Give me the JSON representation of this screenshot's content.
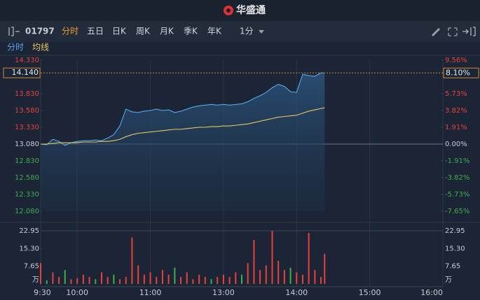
{
  "header": {
    "title": "华盛通"
  },
  "toolbar": {
    "code": "01797",
    "tabs": [
      "分时",
      "五日",
      "日K",
      "周K",
      "月K",
      "季K",
      "年K"
    ],
    "active_tab": 0,
    "interval": "1分"
  },
  "subtabs": [
    "分时",
    "均线"
  ],
  "chart_data": {
    "type": "line",
    "x": [
      0,
      5,
      10,
      15,
      20,
      25,
      30,
      35,
      40,
      45,
      50,
      55,
      60,
      65,
      70,
      75,
      80,
      85,
      90,
      95,
      100,
      105,
      110,
      115,
      120,
      125,
      130,
      135,
      140,
      145,
      150,
      155,
      160,
      165,
      170,
      175,
      180,
      185,
      190,
      195,
      200,
      205,
      210,
      215,
      220,
      225,
      230,
      233
    ],
    "xlim": [
      0,
      330
    ],
    "xticks": [
      {
        "value": 0,
        "label": "9:30"
      },
      {
        "value": 30,
        "label": "10:00"
      },
      {
        "value": 90,
        "label": "11:00"
      },
      {
        "value": 150,
        "label": "13:00"
      },
      {
        "value": 210,
        "label": "14:00"
      },
      {
        "value": 270,
        "label": "15:00"
      },
      {
        "value": 330,
        "label": "16:00"
      }
    ],
    "series": [
      {
        "name": "分时",
        "color": "#5aa8e8",
        "values": [
          13.08,
          13.07,
          13.15,
          13.12,
          13.06,
          13.1,
          13.12,
          13.13,
          13.13,
          13.14,
          13.13,
          13.17,
          13.22,
          13.35,
          13.6,
          13.56,
          13.55,
          13.57,
          13.58,
          13.6,
          13.58,
          13.59,
          13.55,
          13.57,
          13.6,
          13.63,
          13.65,
          13.66,
          13.67,
          13.66,
          13.67,
          13.66,
          13.67,
          13.68,
          13.71,
          13.76,
          13.8,
          13.85,
          13.92,
          13.97,
          13.94,
          13.86,
          13.85,
          14.12,
          14.1,
          14.09,
          14.14,
          14.14
        ]
      },
      {
        "name": "均线",
        "color": "#e8c860",
        "values": [
          13.08,
          13.08,
          13.09,
          13.1,
          13.1,
          13.1,
          13.1,
          13.11,
          13.11,
          13.11,
          13.12,
          13.12,
          13.13,
          13.15,
          13.19,
          13.22,
          13.24,
          13.25,
          13.26,
          13.27,
          13.28,
          13.29,
          13.3,
          13.3,
          13.31,
          13.32,
          13.33,
          13.33,
          13.34,
          13.34,
          13.35,
          13.35,
          13.36,
          13.37,
          13.38,
          13.4,
          13.42,
          13.44,
          13.46,
          13.48,
          13.49,
          13.5,
          13.51,
          13.54,
          13.57,
          13.59,
          13.61,
          13.62
        ]
      }
    ],
    "prev_close": 13.08,
    "ylim": [
      12.08,
      14.33
    ],
    "yticks": [
      {
        "value": 14.33,
        "label": "14.330"
      },
      {
        "value": 13.83,
        "label": "13.830"
      },
      {
        "value": 13.58,
        "label": "13.580"
      },
      {
        "value": 13.33,
        "label": "13.330"
      },
      {
        "value": 13.08,
        "label": "13.080"
      },
      {
        "value": 12.83,
        "label": "12.830"
      },
      {
        "value": 12.58,
        "label": "12.580"
      },
      {
        "value": 12.33,
        "label": "12.330"
      },
      {
        "value": 12.08,
        "label": "12.080"
      }
    ],
    "y2lim": [
      -7.65,
      9.56
    ],
    "y2ticks": [
      {
        "value": 9.56,
        "label": "9.56%"
      },
      {
        "value": 5.73,
        "label": "5.73%"
      },
      {
        "value": 3.82,
        "label": "3.82%"
      },
      {
        "value": 1.91,
        "label": "1.91%"
      },
      {
        "value": 0,
        "label": "0.00%"
      },
      {
        "value": -1.91,
        "label": "-1.91%"
      },
      {
        "value": -3.82,
        "label": "-3.82%"
      },
      {
        "value": -5.73,
        "label": "-5.73%"
      },
      {
        "value": -7.65,
        "label": "-7.65%"
      }
    ],
    "last_price": {
      "value": 14.14,
      "label": "14.140"
    },
    "last_change": {
      "value": 8.1,
      "label": "8.10%"
    },
    "up_color": "#e8413c",
    "down_color": "#3cb04c",
    "volume": {
      "unit": "万",
      "ylim": [
        0,
        22.95
      ],
      "yticks": [
        22.95,
        {
          "value": 15.3,
          "label": "15.30"
        },
        7.65
      ],
      "values": [
        9,
        1.5,
        5,
        3,
        6,
        2,
        2.5,
        4,
        3,
        2,
        5,
        3,
        4,
        2,
        3,
        20,
        8,
        4,
        5,
        3,
        6,
        4,
        7,
        3,
        5,
        2,
        4,
        3,
        2,
        3,
        4,
        3,
        5,
        4,
        9,
        19,
        6,
        8,
        22.9,
        10,
        6,
        7,
        5,
        4,
        22,
        6,
        3,
        13
      ],
      "colors": [
        "#e8413c",
        "#3cb04c",
        "#e8413c",
        "#e8413c",
        "#3cb04c",
        "#e8413c",
        "#e8413c",
        "#e8413c",
        "#e8413c",
        "#3cb04c",
        "#e8413c",
        "#e8413c",
        "#3cb04c",
        "#e8413c",
        "#e8413c",
        "#e8413c",
        "#e8413c",
        "#e8413c",
        "#e8413c",
        "#e8413c",
        "#e8413c",
        "#e8413c",
        "#3cb04c",
        "#e8413c",
        "#e8413c",
        "#e8413c",
        "#e8413c",
        "#e8413c",
        "#3cb04c",
        "#e8413c",
        "#e8413c",
        "#e8413c",
        "#e8413c",
        "#3cb04c",
        "#e8413c",
        "#e8413c",
        "#e8413c",
        "#e8413c",
        "#e8413c",
        "#e8413c",
        "#e8413c",
        "#3cb04c",
        "#e8413c",
        "#e8413c",
        "#e8413c",
        "#e8413c",
        "#e8413c",
        "#e8413c"
      ]
    }
  }
}
